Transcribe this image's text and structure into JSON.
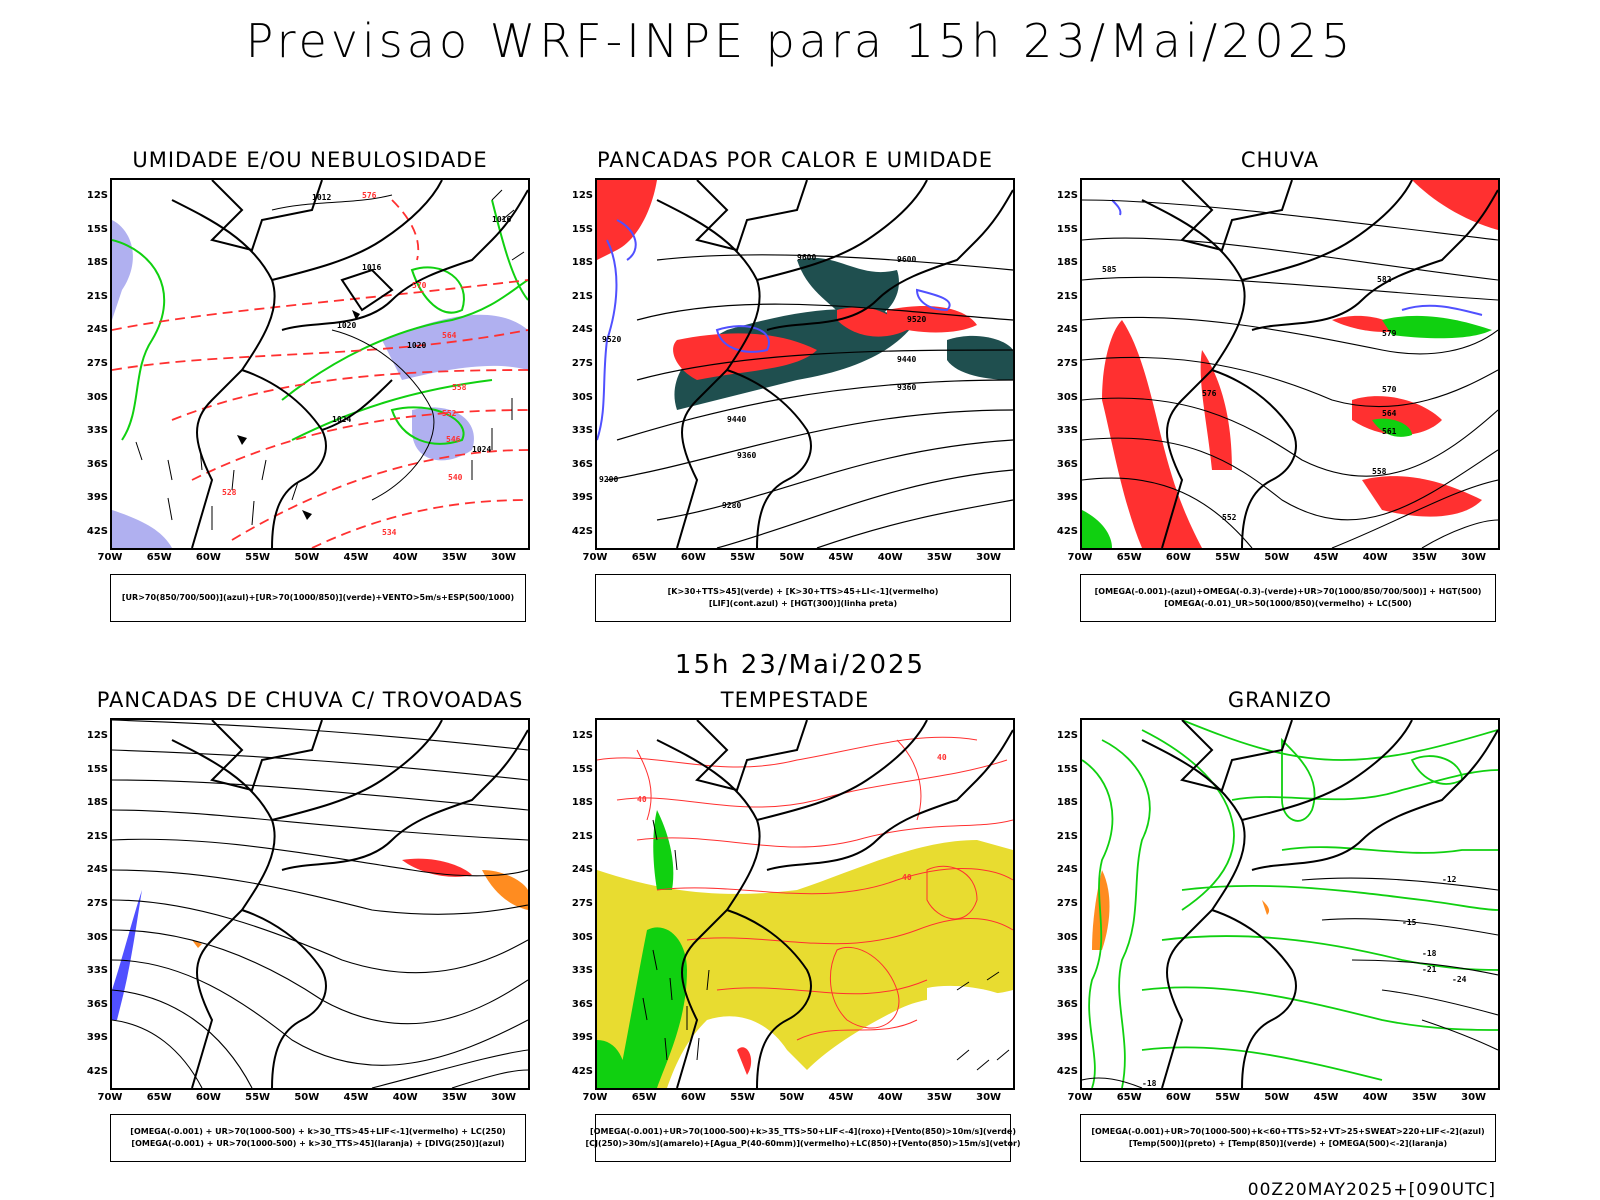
{
  "title": "Previsao WRF-INPE  para 15h 23/Mai/2025",
  "mid_title": "15h 23/Mai/2025",
  "footer": "00Z20MAY2025+[090UTC]",
  "lat_labels": [
    "12S",
    "15S",
    "18S",
    "21S",
    "24S",
    "27S",
    "30S",
    "33S",
    "36S",
    "39S",
    "42S"
  ],
  "lon_labels": [
    "70W",
    "65W",
    "60W",
    "55W",
    "50W",
    "45W",
    "40W",
    "35W",
    "30W"
  ],
  "colors": {
    "blue": "#5050ff",
    "lilac": "#b0b0f0",
    "green": "#10d010",
    "red": "#ff3030",
    "teal": "#1f4f4f",
    "yellow": "#e8dc30",
    "orange": "#ff8c20"
  },
  "panels": [
    {
      "title": "UMIDADE E/OU NEBULOSIDADE",
      "legend": [
        "[UR>70(850/700/500)](azul)+[UR>70(1000/850)](verde)+VENTO>5m/s+ESP(500/1000)"
      ],
      "labels": [
        "1012",
        "1016",
        "1016",
        "1020",
        "1020",
        "1024",
        "1024",
        "576",
        "570",
        "564",
        "558",
        "552",
        "546",
        "540",
        "534",
        "528"
      ]
    },
    {
      "title": "PANCADAS POR CALOR E UMIDADE",
      "legend": [
        "[K>30+TTS>45](verde) + [K>30+TTS>45+LI<-1](vermelho)",
        "[LIF](cont.azul) + [HGT(300)](linha preta)"
      ],
      "labels": [
        "9600",
        "9600",
        "9520",
        "9520",
        "9440",
        "9440",
        "9360",
        "9280",
        "9200",
        "9360"
      ]
    },
    {
      "title": "CHUVA",
      "legend": [
        "[OMEGA(-0.001)-(azul)+OMEGA(-0.3)-(verde)+UR>70(1000/850/700/500)] + HGT(500)",
        "[OMEGA(-0.01)_UR>50(1000/850)(vermelho) + LC(500)"
      ],
      "labels": [
        "582",
        "585",
        "576",
        "570",
        "564",
        "558",
        "552",
        "579",
        "561"
      ]
    },
    {
      "title": "PANCADAS DE CHUVA C/ TROVOADAS",
      "legend": [
        "[OMEGA(-0.001) + UR>70(1000-500) + k>30_TTS>45+LIF<-1](vermelho) + LC(250)",
        "[OMEGA(-0.001) + UR>70(1000-500) + k>30_TTS>45](laranja) + [DIVG(250)](azul)"
      ],
      "labels": []
    },
    {
      "title": "TEMPESTADE",
      "legend": [
        "[OMEGA(-0.001)+UR>70(1000-500)+k>35_TTS>50+LIF<-4](roxo)+[Vento(850)>10m/s](verde)",
        "[CJ(250)>30m/s](amarelo)+[Agua_P(40-60mm)](vermelho)+LC(850)+[Vento(850)>15m/s](vetor)"
      ],
      "labels": [
        "40",
        "40",
        "40"
      ]
    },
    {
      "title": "GRANIZO",
      "legend": [
        "[OMEGA(-0.001)+UR>70(1000-500)+k<60+TTS>52+VT>25+SWEAT>220+LIF<-2](azul)",
        "[Temp(500)](preto) + [Temp(850)](verde) + [OMEGA(500)<-2](laranja)"
      ],
      "labels": [
        "-12",
        "-15",
        "-18",
        "-21",
        "-24",
        "-18"
      ]
    }
  ]
}
